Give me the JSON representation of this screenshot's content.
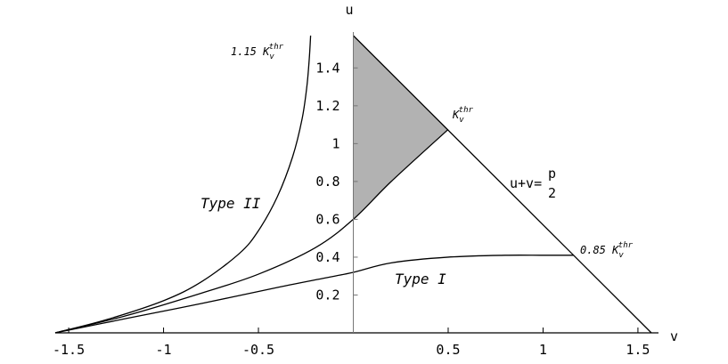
{
  "chart_data": {
    "type": "line",
    "xlabel": "v",
    "ylabel": "u",
    "xlim": [
      -1.5708,
      1.5708
    ],
    "ylim": [
      0,
      1.5708
    ],
    "xticks": [
      {
        "value": -1.5,
        "label": "-1.5"
      },
      {
        "value": -1.0,
        "label": "-1"
      },
      {
        "value": -0.5,
        "label": "-0.5"
      },
      {
        "value": 0.5,
        "label": "0.5"
      },
      {
        "value": 1.0,
        "label": "1"
      },
      {
        "value": 1.5,
        "label": "1.5"
      }
    ],
    "yticks": [
      {
        "value": 0.2,
        "label": "0.2"
      },
      {
        "value": 0.4,
        "label": "0.4"
      },
      {
        "value": 0.6,
        "label": "0.6"
      },
      {
        "value": 0.8,
        "label": "0.8"
      },
      {
        "value": 1.0,
        "label": "1"
      },
      {
        "value": 1.2,
        "label": "1.2"
      },
      {
        "value": 1.4,
        "label": "1.4"
      }
    ],
    "series": [
      {
        "id": "boundary",
        "x": [
          0.0,
          1.5708
        ],
        "y": [
          1.5708,
          0.0
        ]
      },
      {
        "id": "k115",
        "x": [
          -1.5708,
          -1.3,
          -1.0,
          -0.8,
          -0.6,
          -0.5,
          -0.4,
          -0.32,
          -0.27,
          -0.245,
          -0.232,
          -0.225
        ],
        "y": [
          0.0,
          0.07,
          0.17,
          0.27,
          0.42,
          0.54,
          0.72,
          0.93,
          1.13,
          1.3,
          1.45,
          1.5708
        ]
      },
      {
        "id": "kthr",
        "x": [
          -1.5708,
          -1.2,
          -0.8,
          -0.5,
          -0.2,
          0.0,
          0.2,
          0.5
        ],
        "y": [
          0.0,
          0.09,
          0.21,
          0.31,
          0.45,
          0.6,
          0.8,
          1.075
        ]
      },
      {
        "id": "k085",
        "x": [
          -1.5708,
          -1.2,
          -0.8,
          -0.4,
          -0.15,
          0.0,
          0.2,
          0.5,
          0.8,
          1.0,
          1.16
        ],
        "y": [
          0.0,
          0.075,
          0.155,
          0.24,
          0.29,
          0.32,
          0.37,
          0.4,
          0.41,
          0.41,
          0.41
        ]
      }
    ],
    "shaded_region": {
      "x": [
        0.0,
        0.0,
        0.5
      ],
      "y": [
        0.6,
        1.5708,
        1.075
      ]
    },
    "annotations": {
      "k115_prefix": "1.15 K",
      "kthr_prefix": "K",
      "k085_prefix": "0.85 K",
      "k_sub": "v",
      "k_sup": "thr",
      "boundary_text": "u+v=",
      "boundary_frac_num": "p",
      "boundary_frac_den": "2",
      "type1": "Type I",
      "type2": "Type II"
    }
  }
}
